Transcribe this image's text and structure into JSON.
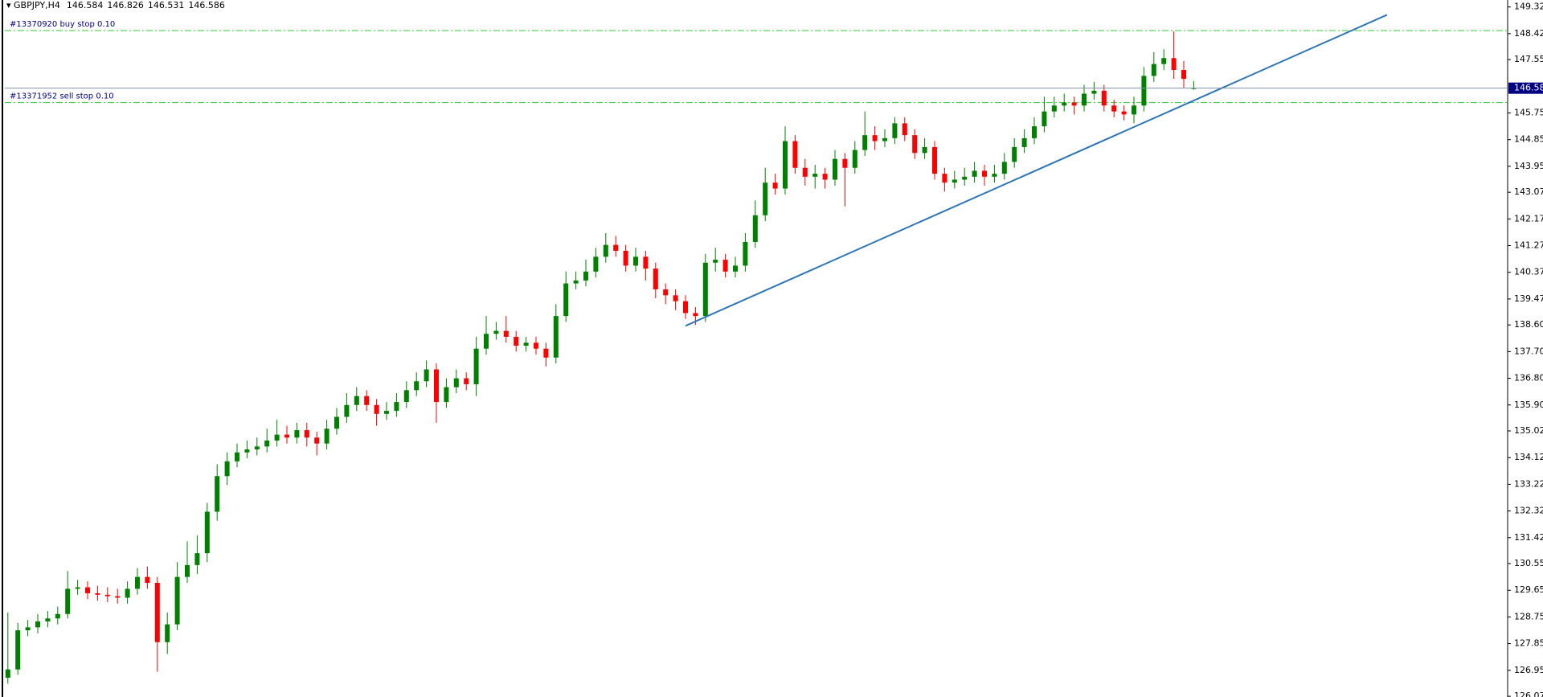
{
  "chart_data": {
    "type": "candlestick",
    "symbol": "GBPJPY,H4",
    "up_color": "#008000",
    "down_color": "#ff0000",
    "ylim": [
      126.05,
      149.56
    ],
    "yticks": [
      149.325,
      148.425,
      {
        "value": 147.55,
        "label": "147.550"
      },
      {
        "value": 145.75,
        "label": "145.750"
      },
      {
        "value": 144.85,
        "label": "144.850"
      },
      {
        "value": 143.95,
        "label": "143.950"
      },
      143.075,
      142.175,
      141.275,
      140.375,
      139.475,
      {
        "value": 138.6,
        "label": "138.600"
      },
      {
        "value": 137.7,
        "label": "137.700"
      },
      {
        "value": 136.8,
        "label": "136.800"
      },
      {
        "value": 135.9,
        "label": "135.900"
      },
      135.025,
      134.125,
      133.225,
      132.325,
      131.425,
      {
        "value": 130.55,
        "label": "130.550"
      },
      {
        "value": 129.65,
        "label": "129.650"
      },
      {
        "value": 128.75,
        "label": "128.750"
      },
      {
        "value": 127.85,
        "label": "127.850"
      },
      {
        "value": 126.95,
        "label": "126.950"
      },
      126.075
    ],
    "open": [
      126.7,
      126.98,
      128.3,
      128.4,
      128.6,
      128.7,
      128.85,
      129.7,
      129.75,
      129.55,
      129.5,
      129.45,
      129.4,
      129.7,
      130.1,
      129.9,
      127.9,
      128.5,
      130.1,
      130.5,
      130.9,
      132.3,
      133.5,
      134.0,
      134.3,
      134.4,
      134.5,
      134.7,
      134.9,
      134.8,
      135.05,
      134.8,
      134.6,
      135.1,
      135.5,
      135.9,
      136.2,
      135.9,
      135.6,
      135.7,
      136.0,
      136.4,
      136.7,
      137.1,
      136.0,
      136.5,
      136.8,
      136.6,
      137.8,
      138.3,
      138.4,
      138.2,
      137.9,
      138.0,
      137.8,
      137.5,
      138.9,
      140.0,
      140.1,
      140.4,
      140.9,
      141.3,
      141.1,
      140.6,
      140.9,
      140.5,
      139.8,
      139.6,
      139.4,
      139.0,
      138.9,
      140.7,
      140.8,
      140.4,
      140.6,
      141.4,
      142.3,
      143.4,
      143.2,
      144.8,
      143.9,
      143.6,
      143.7,
      143.5,
      144.2,
      143.9,
      144.5,
      145.0,
      144.8,
      144.9,
      145.4,
      145.0,
      144.4,
      144.6,
      143.7,
      143.4,
      143.5,
      143.6,
      143.8,
      143.6,
      143.7,
      144.1,
      144.6,
      144.9,
      145.3,
      145.8,
      146.0,
      146.1,
      146.0,
      146.4,
      146.5,
      146.0,
      145.8,
      145.7,
      146.0,
      147.0,
      147.4,
      147.6,
      147.2,
      146.584
    ],
    "high": [
      128.9,
      128.55,
      128.65,
      128.85,
      128.95,
      129.1,
      130.3,
      130.0,
      129.95,
      129.8,
      129.75,
      129.7,
      129.95,
      130.4,
      130.45,
      130.1,
      128.9,
      130.6,
      131.3,
      131.5,
      132.6,
      133.9,
      134.3,
      134.6,
      134.7,
      134.8,
      135.1,
      135.4,
      135.2,
      135.3,
      135.3,
      135.0,
      135.4,
      135.8,
      136.3,
      136.5,
      136.4,
      136.1,
      136.0,
      136.3,
      136.7,
      137.0,
      137.4,
      137.3,
      136.8,
      137.1,
      137.0,
      138.2,
      138.9,
      138.7,
      138.9,
      138.4,
      138.2,
      138.2,
      138.0,
      139.3,
      140.4,
      140.4,
      140.8,
      141.2,
      141.7,
      141.6,
      141.3,
      141.2,
      141.1,
      140.7,
      140.0,
      139.8,
      139.6,
      139.2,
      141.0,
      141.2,
      141.0,
      140.9,
      141.7,
      142.8,
      143.9,
      143.7,
      145.3,
      145.0,
      144.2,
      144.0,
      143.9,
      144.5,
      144.4,
      144.8,
      145.8,
      145.3,
      145.2,
      145.6,
      145.6,
      145.2,
      144.9,
      144.8,
      143.9,
      143.8,
      143.9,
      144.1,
      144.0,
      144.0,
      144.4,
      144.9,
      145.2,
      145.6,
      146.3,
      146.3,
      146.4,
      146.3,
      146.7,
      146.8,
      146.7,
      146.2,
      146.0,
      146.3,
      147.3,
      147.8,
      147.9,
      148.5,
      147.5,
      146.826
    ],
    "low": [
      126.5,
      126.8,
      128.1,
      128.2,
      128.4,
      128.5,
      128.7,
      129.5,
      129.35,
      129.3,
      129.25,
      129.2,
      129.2,
      129.5,
      129.7,
      126.9,
      127.5,
      128.3,
      129.9,
      130.2,
      130.6,
      132.0,
      133.2,
      133.8,
      134.1,
      134.2,
      134.3,
      134.5,
      134.6,
      134.6,
      134.5,
      134.2,
      134.4,
      134.9,
      135.3,
      135.7,
      135.7,
      135.2,
      135.4,
      135.5,
      135.8,
      136.2,
      136.5,
      135.3,
      135.8,
      136.3,
      136.4,
      136.2,
      137.6,
      138.1,
      138.0,
      137.7,
      137.7,
      137.6,
      137.2,
      137.3,
      138.7,
      139.8,
      139.9,
      140.2,
      140.7,
      140.9,
      140.4,
      140.4,
      140.1,
      139.5,
      139.3,
      139.1,
      138.8,
      138.6,
      138.7,
      140.4,
      140.2,
      140.2,
      140.4,
      141.2,
      142.1,
      143.0,
      143.0,
      143.7,
      143.3,
      143.2,
      143.2,
      143.3,
      142.6,
      143.7,
      144.3,
      144.5,
      144.6,
      144.7,
      144.8,
      144.2,
      144.2,
      143.5,
      143.1,
      143.2,
      143.3,
      143.4,
      143.3,
      143.4,
      143.5,
      143.9,
      144.4,
      144.7,
      145.1,
      145.6,
      145.8,
      145.7,
      145.8,
      146.2,
      145.8,
      145.6,
      145.5,
      145.4,
      145.8,
      146.8,
      147.2,
      146.9,
      146.6,
      146.531
    ],
    "close": [
      126.98,
      128.3,
      128.4,
      128.6,
      128.7,
      128.85,
      129.7,
      129.75,
      129.55,
      129.5,
      129.45,
      129.4,
      129.7,
      130.1,
      129.9,
      127.9,
      128.5,
      130.1,
      130.5,
      130.9,
      132.3,
      133.5,
      134.0,
      134.3,
      134.4,
      134.5,
      134.7,
      134.9,
      134.8,
      135.05,
      134.8,
      134.6,
      135.1,
      135.5,
      135.9,
      136.2,
      135.9,
      135.6,
      135.7,
      136.0,
      136.4,
      136.7,
      137.1,
      136.0,
      136.5,
      136.8,
      136.6,
      137.8,
      138.3,
      138.4,
      138.2,
      137.9,
      138.0,
      137.8,
      137.5,
      138.9,
      140.0,
      140.1,
      140.4,
      140.9,
      141.3,
      141.1,
      140.6,
      140.9,
      140.5,
      139.8,
      139.6,
      139.4,
      139.0,
      138.9,
      140.7,
      140.8,
      140.4,
      140.6,
      141.4,
      142.3,
      143.4,
      143.2,
      144.8,
      143.9,
      143.6,
      143.7,
      143.5,
      144.2,
      143.9,
      144.5,
      145.0,
      144.8,
      144.9,
      145.4,
      145.0,
      144.4,
      144.6,
      143.7,
      143.4,
      143.5,
      143.6,
      143.8,
      143.6,
      143.7,
      144.1,
      144.6,
      144.9,
      145.3,
      145.8,
      146.0,
      146.1,
      146.0,
      146.4,
      146.5,
      146.0,
      145.8,
      145.7,
      146.0,
      147.0,
      147.4,
      147.6,
      147.2,
      146.9,
      146.586
    ],
    "orders": [
      {
        "label": "#13370920 buy stop 0.10",
        "price": 148.53
      },
      {
        "label": "#13371952 sell stop 0.10",
        "price": 146.1
      }
    ],
    "order_color": "#32cd32",
    "current_price_color": "#000080",
    "trendline": {
      "color": "#2e75b6",
      "x": [
        68.0,
        138.4
      ],
      "y": [
        138.57,
        149.06
      ]
    }
  }
}
